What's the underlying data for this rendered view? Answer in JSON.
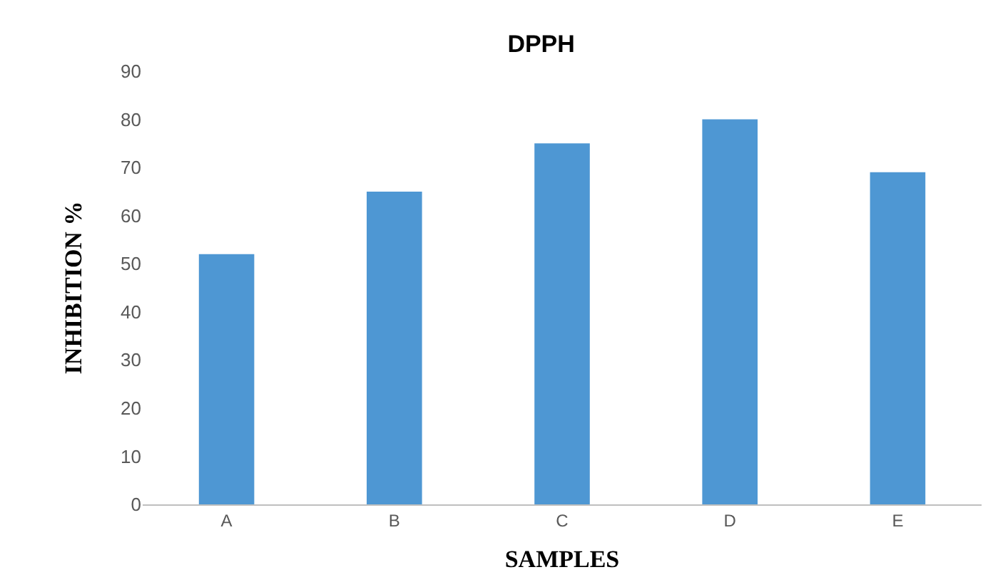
{
  "chart_data": {
    "type": "bar",
    "title": "DPPH",
    "xlabel": "SAMPLES",
    "ylabel": "INHIBITION %",
    "categories": [
      "A",
      "B",
      "C",
      "D",
      "E"
    ],
    "values": [
      52,
      65,
      75,
      80,
      69
    ],
    "color": "#4e97d3",
    "ylim": [
      0,
      90
    ],
    "yticks": [
      0,
      10,
      20,
      30,
      40,
      50,
      60,
      70,
      80,
      90
    ],
    "grid": false,
    "legend": false
  }
}
